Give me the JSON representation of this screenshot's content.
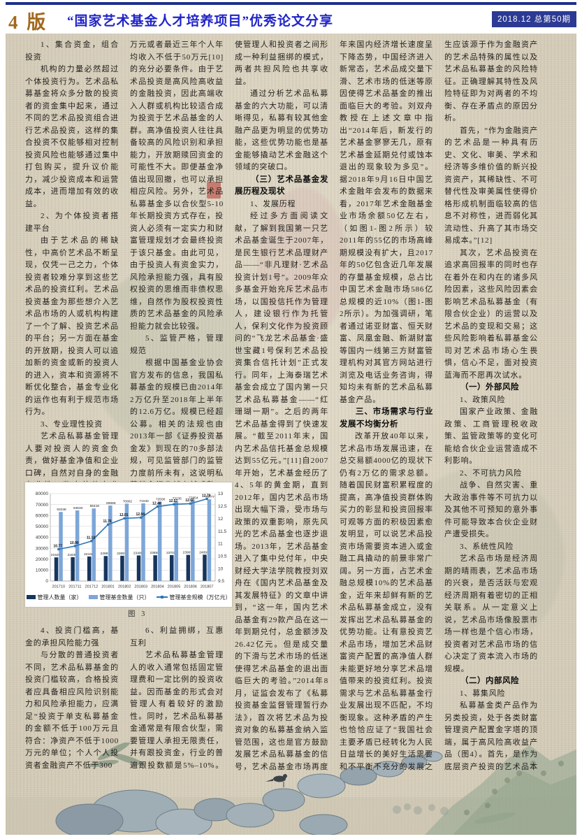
{
  "header": {
    "page_label": "4 版",
    "title": "“国家艺术基金人才培养项目”优秀论文分享",
    "issue": "2018.12 总第50期"
  },
  "columns": {
    "col1_top": [
      {
        "s": "p",
        "t": "1、集合资金，组合投资"
      },
      {
        "s": "p",
        "t": "机构的力量必然超过个体投资行为。艺术品私募基金将众多分散的投资者的资金集中起来，通过不同的艺术品投资组合进行艺术品投资，这样的集合投资不仅能够相对控制投资风险也能够通过集中打包购买，提升议价能力，减少投资成本和运营成本，进而增加有效的收益。"
      },
      {
        "s": "p",
        "t": "2、为个体投资者搭建平台"
      },
      {
        "s": "p",
        "t": "由于艺术品的稀缺性，中高价艺术品不断呈现，仅凭一己之力，个体投资者较难分享到这些艺术品的投资红利。艺术品投资基金为那些想介入艺术品市场的人或机构构建了一个了解、投资艺术品的平台；另一方面在基金的开放期，投资人可以追加新的资金或新的投资人的进入，资本和资源将不断优化整合，基金专业化的运作也有利于规范市场行为。"
      },
      {
        "s": "p",
        "t": "3、专业理性投资"
      },
      {
        "s": "p",
        "t": "艺术品私募基金管理人要对投资人的资金负责，做好基金净值和企业口碑，自然对自身的金融专业性、鉴定估值专业性、市场分析能力、整合能力、操作能力有较高的要求，毕竟打铁还需自身硬。"
      }
    ],
    "col1_bottom": [
      {
        "s": "p",
        "t": "4、投资门槛高，基金的承担风险能力强"
      },
      {
        "s": "p",
        "t": "与分散的普通投资者不同，艺术品私募基金的投资门槛较高，合格投资者应具备相应风险识别能力和风险承担能力，应满足“投资于单支私募基金的金额不低于100万元且符合：净资产不低于1000万元的单位；个人个人投资者金融资产不低于300"
      }
    ],
    "col2_top": [
      {
        "s": "cont",
        "t": "万元或者最近三年个人年均收入不低于50万元[10]的充分必要条件。由于艺术品投资是高风险高收益的金融投资，因此高端收入人群或机构比较适合成为投资于艺术品基金的人群。高净值投资人往往具备较高的风险识别和承担能力，开放期赎回资金的可能性不大。即便基金净值出现回撤，也可以承担相应风险。另外，艺术品私募基金多以合伙型5-10年长期投资方式存在，投资人必须有一定实力和财富管理规划才会最终投资于该只基金。由此可见，由于投资人有资金实力，风险承担能力强，具有股权投资的思维而非债权思维，自然作为股权投资性质的艺术品基金的风险承担能力就会比较强。"
      },
      {
        "s": "p",
        "t": "5、监管严格，管理规范"
      },
      {
        "s": "p",
        "t": "根据中国基金业协会官方发布的信息，我国私募基金的规模已由2014年2万亿升至2018年上半年的12.6万亿。规模已经超公募。相关的法规也由2013年一部《证券投资基金发》到现在的70多部法规，可见监管部门的监管力度前所未有，这说明私募基金行业越来越成熟，管理越来越规范。"
      }
    ],
    "col2_bottom": [
      {
        "s": "p",
        "t": "6、利益拥绑，互惠互利"
      },
      {
        "s": "p",
        "t": "艺术品私募基金管理人的收入通常包括固定管理费和一定比例的投资收益。因而基金的形式会对管理人有着较好的激励性。同时，艺术品私募基金通常是有限合伙型，需要管理人承担无限责任，并有跟投资金，行业的普遍跟投数额是5%–10%。从而"
      }
    ],
    "col3": [
      {
        "s": "cont",
        "t": "使管理人和投资者之间形成一种利益捆绑的模式，两者共担风险也共享收益。"
      },
      {
        "s": "p",
        "t": "通过分析艺术品私募基金的六大功能，可以清晰得见，私募有较其他金融产品更为明显的优势功能，这些优势功能也是基金能够撬动艺术金融这个领域的突破口。"
      },
      {
        "s": "h",
        "t": "（三）艺术品基金发展历程及现状"
      },
      {
        "s": "p",
        "t": "1、发展历程"
      },
      {
        "s": "p",
        "t": "经过多方面阅读文献，了解到我国第一只艺术品基金诞生于2007年，是民生银行艺术品理财产品——“非凡理财·艺术品投资计划1号”。2009年众多基金开始充斥艺术品市场，以国投信托作为管理人，建设银行作为托管人，保利文化作为投资顾问的“飞龙艺术品基金·盛世宝藏1号保利艺术品投资集合信托计划”正式发行。同年，上海泰瑞艺术基金会成立了国内第一只艺术品私募基金——“红珊瑚一期”。之后的两年艺术品基金得到了快速发展。“截至2011年末，国内艺术品信托基金总规模达到55亿元。”[11]自2007年开始，艺术基金经历了4、5年的黄金期，直到2012年，国内艺术品市场出现大幅下滑，受市场与政策的双重影响，原先风光的艺术品基金也逐步退场。2013年，艺术品基金进入了集中兑付年，中央财经大学法学院教授刘双舟在《国内艺术品基金及其发展特征》的文章中讲到，“这一年，国内艺术品基金有29款产品在这一年到期兑付，总金额涉及26.42亿元。但是成交量的下滑与艺术市场的低迷使得艺术品基金的退出面临巨大的考验。”2014年8月，证监会发布了《私募投资基金监督管理暂行办法》，首次将艺术品为投资对象的私募基金纳入监管范围，这也是官方鼓励发展艺术品私募基金的信号，艺术品基金市场再度引起大家关注。"
      },
      {
        "s": "p",
        "t": "2、发展现状"
      },
      {
        "s": "p",
        "t": "就现状而言，由于近"
      }
    ],
    "col4": [
      {
        "s": "cont",
        "t": "年来国内经济增长速度呈下降态势，中国经济进入新常态，艺术品成交量下滑、艺术市场的低迷等原因使得艺术品基金的推出面临巨大的考验。刘双舟教授在上述文章中指出“2014年后，新发行的艺术基金寥寥无几，原有艺术基金延期兑付或蚀本退出的现象较为多见”。据2018年9月16日中国艺术金融年会发布的数据来看，2017年艺术金融基金业市场余额50亿左右，（如图1-图2所示）较2011年的55亿的市场高峰期规模没有扩大，且2017年的50亿包含近几年发展的存量基金规模，总占比中国艺术金融市场586亿总规模的近10%（图1-图2所示）。为加强调研，笔者通过诺亚财富、恒天财富、凤凰金融、新湖财富等国内一线第三方财富管理机构对其官方网站进行浏览及电话业务咨询，得知均未有新的艺术品私募基金产品。"
      },
      {
        "s": "h",
        "t": "三、市场需求与行业发展不均衡分析"
      },
      {
        "s": "p",
        "t": "改革开放40年以来，艺术品市场发展迅速，在总交易额4000亿的现状下仍有2万亿的需求总额。随着国民财富积累程度的提高，高净值投资群体购买力的彰显和投资回报率可观等方面的积极因素愈发明显，可以说艺术品投资市场需要资本进入或金融工具撬动的前景非常广阔。另一方面，占艺术金融总规模10%的艺术品基金，近年来却鲜有新的艺术品私募基金成立，没有发挥出艺术品私募基金的优势功能。让有意投资艺术品市场，增加艺术品财富资产配置的高净值人群未能更好地分享艺术品增值带来的投资红利。投资需求与艺术品私募基金行业发展出现不匹配，不均衡现象。这种矛盾的产生也恰恰应证了“我国社会主要矛盾已经转化为人民日益增长的美好生活需要和不平衡不充分的发展之间的矛盾”的科学道理。"
      },
      {
        "s": "p",
        "t": "这种不均衡矛盾的产"
      }
    ],
    "col5": [
      {
        "s": "cont",
        "t": "生应该源于作为金融资产的艺术品特殊的属性以及艺术品私募基金的风险特征。正确理解其特性及风险特征即为对两者的不均衡、存在矛盾点的原因分析。"
      },
      {
        "s": "p",
        "t": "首先，“作为金融资产的艺术品是一种具有历史、文化、审美、学术和经济等多维价值的新兴投资资产，其稀缺性、不可替代性及审美属性使得价格形成机制面临较高的信息不对称性，进而弱化其流动性、升高了其市场交易成本。”[12]"
      },
      {
        "s": "p",
        "t": "其次，艺术品投资在追求高回报率的同时也存在着外在和内在的诸多风险因素，这些风险因素会影响艺术品私募基金（有限合伙企业）的运营以及艺术品的变现和交易；这些风险影响着私募基金公司对艺术品市场心生畏惧，信心不足，面对投资蓝海而不愿再次试水。"
      },
      {
        "s": "h",
        "t": "（一）外部风险"
      },
      {
        "s": "p",
        "t": "1、政策风险"
      },
      {
        "s": "p",
        "t": "国家产业政策、金融政策、工商管理税收政策、监管政策等的变化可能给合伙企业运营造成不利影响。"
      },
      {
        "s": "p",
        "t": "2、不可抗力风险"
      },
      {
        "s": "p",
        "t": "战争、自然灾害、重大政治事件等不可抗力以及其他不可预知的意外事件可能导致本合伙企业财产遭受损失。"
      },
      {
        "s": "p",
        "t": "3、系统性风险"
      },
      {
        "s": "p",
        "t": "艺术品市场是经济周期的晴雨表，艺术品市场的兴衰，是否活跃与宏观经济周期有着密切的正相关联系。从一定意义上说，艺术品市场像股票市场一样也是个信心市场，投资者对艺术品市场的信心决定了资本流入市场的规模。"
      },
      {
        "s": "h",
        "t": "（二）内部风险"
      },
      {
        "s": "p",
        "t": "1、募集风险"
      },
      {
        "s": "p",
        "t": "私募基金类产品作为另类投资，处于各类财富管理资产配置金字塔的顶端，属于高风险高收益产品（图4）。首先，是作为底层资产投资的艺术品本身具有市场风险高和各专业性要求高等特性；其次，私募基金受法律法规"
      }
    ]
  },
  "chart_data": {
    "type": "bar",
    "caption": "图 3",
    "categories": [
      "201710",
      "201711",
      "201712",
      "201801",
      "201802",
      "201803",
      "201804",
      "201805",
      "201806",
      "201807"
    ],
    "series": [
      {
        "name": "管理人数量（家）",
        "type": "bar",
        "axis": "left",
        "color": "#17365d",
        "values": [
          21628,
          21836,
          22446,
          22883,
          23097,
          23400,
          23559,
          23703,
          23903,
          24093
        ]
      },
      {
        "name": "管理基金数量（只）",
        "type": "bar",
        "axis": "left",
        "color": "#7da6d8",
        "values": [
          63248,
          64633,
          66418,
          69086,
          70802,
          71040,
          72500,
          73235,
          73854,
          74777
        ]
      },
      {
        "name": "管理基金规模（万亿元）",
        "type": "line",
        "axis": "right",
        "color": "#2f76b5",
        "values": [
          10.77,
          10.9,
          11.1,
          11.76,
          12.01,
          12.04,
          12.48,
          12.57,
          12.6,
          12.79
        ]
      }
    ],
    "left_axis": {
      "min": 0,
      "max": 80000,
      "step": 10000
    },
    "right_axis": {
      "min": 9.5,
      "max": 13,
      "step": 0.5
    },
    "grid": true,
    "legend_position": "bottom"
  },
  "colors": {
    "accent_blue": "#2024c8",
    "badge_blue": "#2c3a94",
    "page_label_brown": "#a2691f",
    "paper": "#ded6c2",
    "bar_dark": "#17365d",
    "bar_light": "#7da6d8",
    "line_blue": "#2f76b5"
  }
}
